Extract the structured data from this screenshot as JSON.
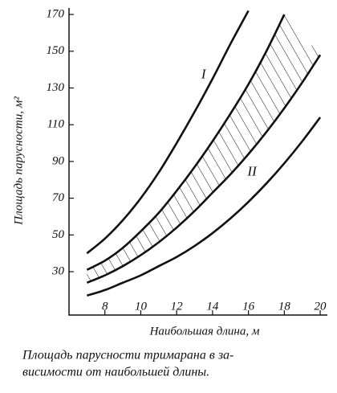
{
  "chart_data": {
    "type": "line",
    "y_label": "Площадь парусности, м²",
    "x_label": "Наибольшая длина, м",
    "caption": [
      "Площадь парусности тримарана в за-",
      "висимости от наибольшей длины."
    ],
    "x": [
      7,
      8,
      9,
      10,
      11,
      12,
      13,
      14,
      15,
      16,
      17,
      18,
      19,
      20
    ],
    "series": [
      {
        "color": "#111111",
        "values": [
          40,
          48,
          58,
          70,
          84,
          100,
          117,
          135,
          154,
          172,
          null,
          null,
          null,
          null
        ]
      },
      {
        "color": "#111111",
        "values": [
          31,
          36,
          43,
          52,
          62,
          74,
          87,
          101,
          116,
          132,
          150,
          170,
          null,
          null
        ]
      },
      {
        "color": "#111111",
        "values": [
          24,
          28,
          33,
          39,
          46,
          54,
          63,
          73,
          83,
          94,
          106,
          119,
          133,
          148
        ]
      },
      {
        "color": "#111111",
        "values": [
          17,
          20,
          24,
          28,
          33,
          38,
          44,
          51,
          59,
          68,
          78,
          89,
          101,
          114
        ]
      }
    ],
    "hatched_between": [
      1,
      2
    ],
    "annotations": [
      {
        "text": "I",
        "x": 13.5,
        "y": 137
      },
      {
        "text": "II",
        "x": 16.2,
        "y": 84
      }
    ],
    "xlim": [
      6,
      20.4
    ],
    "ylim": [
      6.4,
      173.5
    ],
    "xticks": [
      8,
      10,
      12,
      14,
      16,
      18,
      20
    ],
    "yticks": [
      30,
      50,
      70,
      90,
      110,
      130,
      150,
      170
    ],
    "grid": false
  }
}
